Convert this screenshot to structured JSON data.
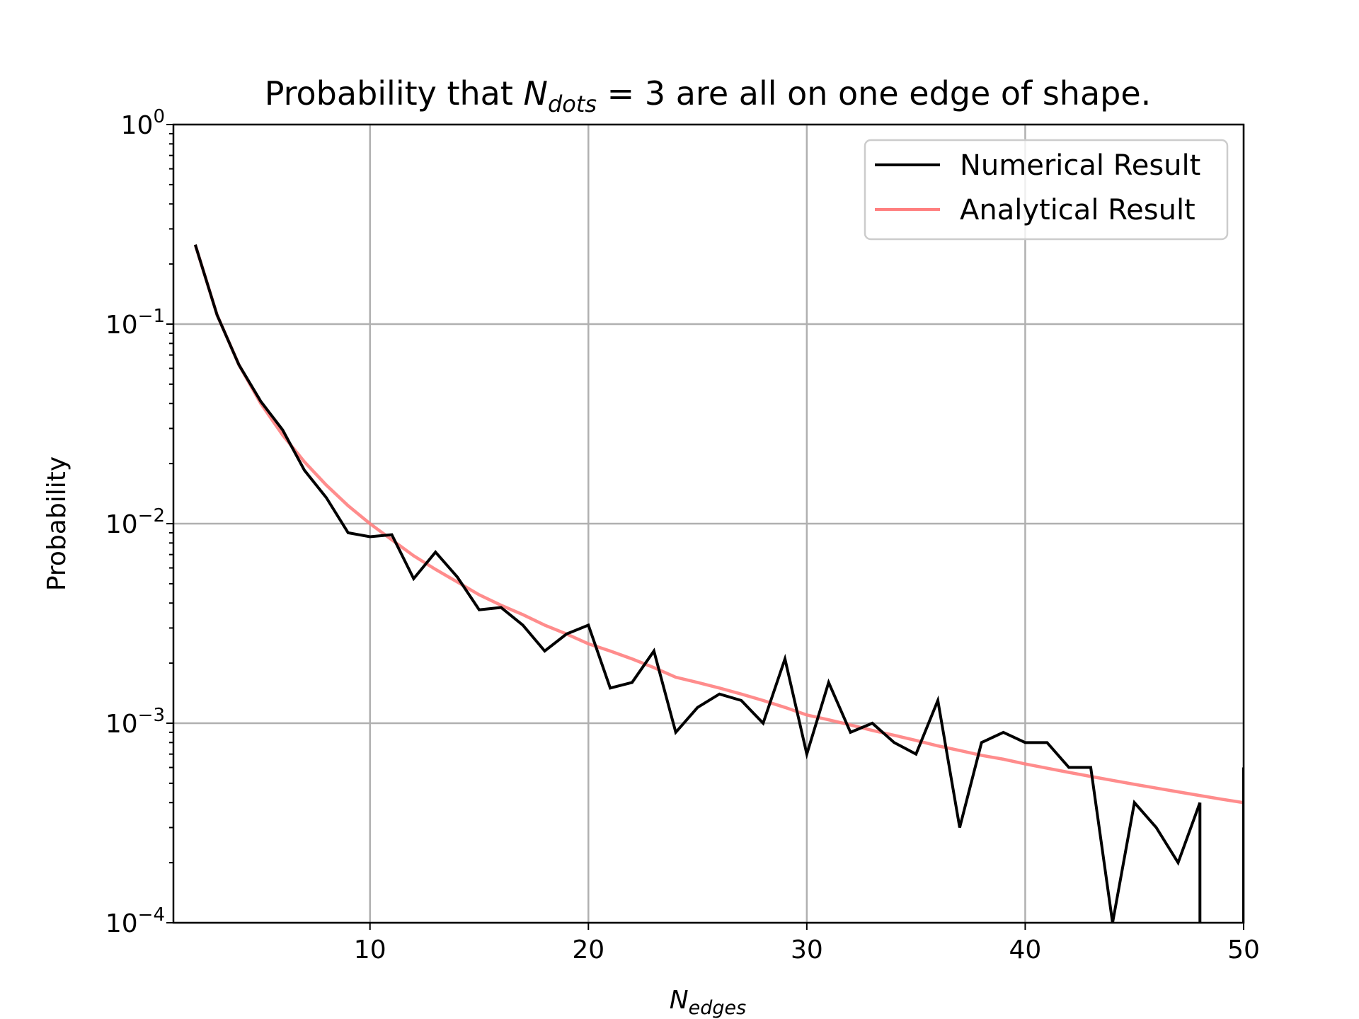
{
  "chart_data": {
    "type": "line",
    "title_prefix": "Probability that ",
    "title_var": "N",
    "title_var_sub": "dots",
    "title_suffix": " = 3 are all on one edge of shape.",
    "xlabel_var": "N",
    "xlabel_sub": "edges",
    "ylabel": "Probability",
    "y_scale": "log",
    "xlim": [
      1,
      50
    ],
    "ylim": [
      0.0001,
      1
    ],
    "grid": true,
    "legend_position": "upper right",
    "x_ticks": [
      10,
      20,
      30,
      40,
      50
    ],
    "y_ticks": [
      {
        "value": 1,
        "base": "10",
        "exp": "0"
      },
      {
        "value": 0.1,
        "base": "10",
        "exp": "−1"
      },
      {
        "value": 0.01,
        "base": "10",
        "exp": "−2"
      },
      {
        "value": 0.001,
        "base": "10",
        "exp": "−3"
      },
      {
        "value": 0.0001,
        "base": "10",
        "exp": "−4"
      }
    ],
    "series": [
      {
        "name": "Numerical Result",
        "color": "#000000",
        "x": [
          2,
          3,
          4,
          5,
          6,
          7,
          8,
          9,
          10,
          11,
          12,
          13,
          14,
          15,
          16,
          17,
          18,
          19,
          20,
          21,
          22,
          23,
          24,
          25,
          26,
          27,
          28,
          29,
          30,
          31,
          32,
          33,
          34,
          35,
          36,
          37,
          38,
          39,
          40,
          41,
          42,
          43,
          44,
          45,
          46,
          47,
          48,
          49,
          50
        ],
        "y": [
          0.25,
          0.111,
          0.0625,
          0.041,
          0.0295,
          0.0185,
          0.0135,
          0.009,
          0.0086,
          0.0088,
          0.0053,
          0.0072,
          0.0054,
          0.0037,
          0.0038,
          0.0031,
          0.0023,
          0.0028,
          0.0031,
          0.0015,
          0.0016,
          0.0023,
          0.0009,
          0.0012,
          0.0014,
          0.0013,
          0.001,
          0.0021,
          0.0007,
          0.0016,
          0.0009,
          0.001,
          0.0008,
          0.0007,
          0.0013,
          0.0003,
          0.0008,
          0.0009,
          0.0008,
          0.0008,
          0.0006,
          0.0006,
          0.0001,
          0.0004,
          0.0003,
          0.0002,
          0.0004,
          null,
          0.0006
        ]
      },
      {
        "name": "Analytical Result",
        "color": "#ff7f7f",
        "x": [
          2,
          3,
          4,
          5,
          6,
          7,
          8,
          9,
          10,
          11,
          12,
          13,
          14,
          15,
          16,
          17,
          18,
          19,
          20,
          21,
          22,
          23,
          24,
          25,
          26,
          27,
          28,
          29,
          30,
          31,
          32,
          33,
          34,
          35,
          36,
          37,
          38,
          39,
          40,
          41,
          42,
          43,
          44,
          45,
          46,
          47,
          48,
          49,
          50
        ],
        "y": [
          0.25,
          0.1111,
          0.0625,
          0.04,
          0.0278,
          0.0204,
          0.0156,
          0.0123,
          0.01,
          0.0083,
          0.0069,
          0.0059,
          0.0051,
          0.0044,
          0.0039,
          0.0035,
          0.0031,
          0.0028,
          0.0025,
          0.0023,
          0.0021,
          0.0019,
          0.0017,
          0.0016,
          0.0015,
          0.0014,
          0.0013,
          0.0012,
          0.0011,
          0.00104,
          0.00098,
          0.00092,
          0.00087,
          0.00082,
          0.00077,
          0.00073,
          0.00069,
          0.00066,
          0.000625,
          0.000595,
          0.000567,
          0.000541,
          0.000517,
          0.000494,
          0.000473,
          0.000453,
          0.000434,
          0.000416,
          0.0004
        ]
      }
    ]
  }
}
